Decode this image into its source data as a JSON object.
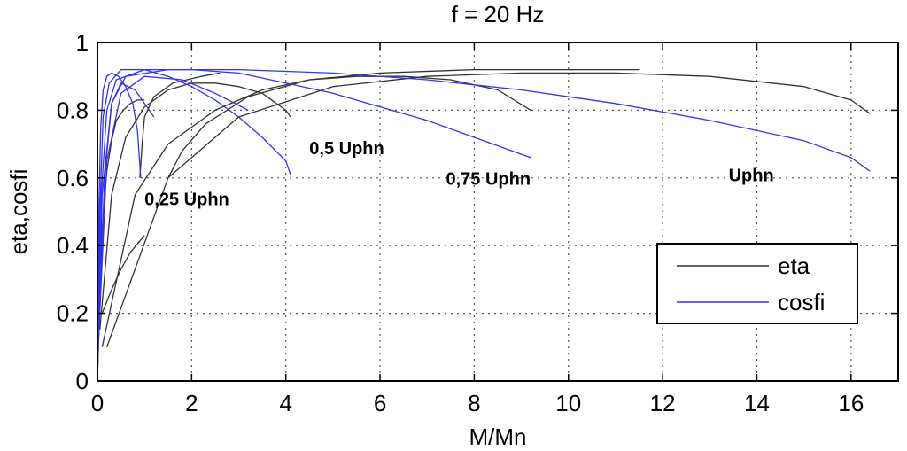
{
  "chart_data": {
    "type": "line",
    "title": "f = 20 Hz",
    "xlabel": "M/Mn",
    "ylabel": "eta,cosfi",
    "xlim": [
      0,
      17
    ],
    "ylim": [
      0,
      1
    ],
    "xticks": [
      0,
      2,
      4,
      6,
      8,
      10,
      12,
      14,
      16
    ],
    "yticks": [
      0,
      0.2,
      0.4,
      0.6,
      0.8,
      1
    ],
    "ytick_labels": [
      "0",
      "0.2",
      "0.4",
      "0.6",
      "0.8",
      "1"
    ],
    "grid": true,
    "legend": {
      "placement": "bottom-right",
      "entries": [
        {
          "label": "eta",
          "color": "#333333"
        },
        {
          "label": "cosfi",
          "color": "#3333ee"
        }
      ]
    },
    "annotations": [
      {
        "text": "0,25 Uphn",
        "x": 1.0,
        "y": 0.52
      },
      {
        "text": "0,5 Uphn",
        "x": 4.5,
        "y": 0.67
      },
      {
        "text": "0,75 Uphn",
        "x": 7.4,
        "y": 0.58
      },
      {
        "text": "Uphn",
        "x": 13.4,
        "y": 0.59
      }
    ],
    "series": [
      {
        "name": "eta",
        "color": "#333333",
        "curves": [
          [
            [
              0,
              0
            ],
            [
              0.05,
              0.25
            ],
            [
              0.1,
              0.45
            ],
            [
              0.2,
              0.62
            ],
            [
              0.3,
              0.71
            ],
            [
              0.4,
              0.77
            ],
            [
              0.55,
              0.8
            ],
            [
              0.7,
              0.82
            ],
            [
              0.85,
              0.83
            ],
            [
              1.0,
              0.83
            ]
          ],
          [
            [
              0.05,
              0.15
            ],
            [
              0.3,
              0.55
            ],
            [
              0.6,
              0.72
            ],
            [
              1.0,
              0.81
            ],
            [
              1.5,
              0.86
            ],
            [
              2.0,
              0.88
            ],
            [
              2.5,
              0.88
            ],
            [
              3.0,
              0.87
            ],
            [
              3.5,
              0.85
            ],
            [
              4.0,
              0.8
            ],
            [
              4.1,
              0.78
            ]
          ],
          [
            [
              0.1,
              0.1
            ],
            [
              0.8,
              0.55
            ],
            [
              1.5,
              0.7
            ],
            [
              2.5,
              0.8
            ],
            [
              3.5,
              0.86
            ],
            [
              4.5,
              0.89
            ],
            [
              5.5,
              0.9
            ],
            [
              6.5,
              0.9
            ],
            [
              7.5,
              0.89
            ],
            [
              8.5,
              0.86
            ],
            [
              9.2,
              0.8
            ]
          ],
          [
            [
              0.2,
              0.1
            ],
            [
              1.5,
              0.6
            ],
            [
              3.0,
              0.78
            ],
            [
              5.0,
              0.87
            ],
            [
              7.0,
              0.9
            ],
            [
              9.0,
              0.91
            ],
            [
              11.0,
              0.91
            ],
            [
              13.0,
              0.9
            ],
            [
              15.0,
              0.87
            ],
            [
              16.0,
              0.83
            ],
            [
              16.4,
              0.79
            ]
          ],
          [
            [
              1.0,
              0.43
            ],
            [
              0.7,
              0.38
            ],
            [
              0.5,
              0.33
            ],
            [
              0.3,
              0.27
            ],
            [
              0.1,
              0.2
            ]
          ],
          [
            [
              0.9,
              0.6
            ],
            [
              0.95,
              0.7
            ],
            [
              1.0,
              0.78
            ],
            [
              1.2,
              0.84
            ],
            [
              1.6,
              0.88
            ],
            [
              2.2,
              0.9
            ],
            [
              2.6,
              0.91
            ]
          ],
          [
            [
              1.5,
              0.6
            ],
            [
              1.8,
              0.68
            ],
            [
              2.3,
              0.76
            ],
            [
              3.2,
              0.84
            ],
            [
              4.5,
              0.89
            ],
            [
              6.0,
              0.91
            ],
            [
              8.0,
              0.92
            ],
            [
              10.0,
              0.92
            ],
            [
              11.5,
              0.92
            ]
          ]
        ]
      },
      {
        "name": "cosfi",
        "color": "#3333ee",
        "curves": [
          [
            [
              0,
              0
            ],
            [
              0.03,
              0.5
            ],
            [
              0.07,
              0.75
            ],
            [
              0.12,
              0.86
            ],
            [
              0.2,
              0.9
            ],
            [
              0.3,
              0.91
            ],
            [
              0.45,
              0.9
            ],
            [
              0.6,
              0.87
            ],
            [
              0.75,
              0.82
            ],
            [
              0.85,
              0.74
            ],
            [
              0.92,
              0.6
            ]
          ],
          [
            [
              0,
              0
            ],
            [
              0.05,
              0.5
            ],
            [
              0.12,
              0.78
            ],
            [
              0.25,
              0.88
            ],
            [
              0.5,
              0.92
            ],
            [
              1.0,
              0.92
            ],
            [
              1.5,
              0.9
            ],
            [
              2.0,
              0.87
            ],
            [
              2.5,
              0.83
            ],
            [
              3.0,
              0.78
            ],
            [
              3.5,
              0.72
            ],
            [
              4.0,
              0.65
            ],
            [
              4.1,
              0.61
            ]
          ],
          [
            [
              0,
              0
            ],
            [
              0.08,
              0.55
            ],
            [
              0.2,
              0.8
            ],
            [
              0.4,
              0.89
            ],
            [
              1.0,
              0.92
            ],
            [
              2.0,
              0.92
            ],
            [
              3.0,
              0.91
            ],
            [
              4.0,
              0.88
            ],
            [
              5.0,
              0.85
            ],
            [
              6.0,
              0.81
            ],
            [
              7.0,
              0.77
            ],
            [
              8.0,
              0.72
            ],
            [
              9.0,
              0.67
            ],
            [
              9.2,
              0.66
            ]
          ],
          [
            [
              0,
              0
            ],
            [
              0.1,
              0.55
            ],
            [
              0.3,
              0.82
            ],
            [
              0.6,
              0.9
            ],
            [
              1.5,
              0.92
            ],
            [
              3.0,
              0.92
            ],
            [
              5.0,
              0.91
            ],
            [
              7.0,
              0.89
            ],
            [
              9.0,
              0.86
            ],
            [
              11.0,
              0.82
            ],
            [
              13.0,
              0.77
            ],
            [
              15.0,
              0.71
            ],
            [
              16.0,
              0.66
            ],
            [
              16.4,
              0.62
            ]
          ],
          [
            [
              0,
              0.02
            ],
            [
              0.15,
              0.6
            ],
            [
              0.3,
              0.82
            ],
            [
              0.5,
              0.88
            ],
            [
              0.8,
              0.86
            ],
            [
              1.0,
              0.82
            ],
            [
              1.2,
              0.78
            ]
          ],
          [
            [
              0,
              0.05
            ],
            [
              0.2,
              0.65
            ],
            [
              0.5,
              0.85
            ],
            [
              1.0,
              0.9
            ],
            [
              1.8,
              0.89
            ],
            [
              2.5,
              0.85
            ],
            [
              3.2,
              0.8
            ]
          ]
        ]
      }
    ]
  }
}
